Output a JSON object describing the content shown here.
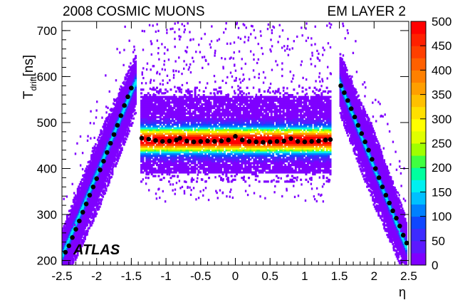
{
  "chart_data": {
    "type": "heatmap",
    "title_left": "2008 COSMIC MUONS",
    "title_right": "EM LAYER 2",
    "xlabel": "η",
    "ylabel_main": "T",
    "ylabel_sub": "drift",
    "ylabel_unit": "[ns]",
    "watermark": "ATLAS",
    "xlim": [
      -2.5,
      2.5
    ],
    "ylim": [
      190,
      720
    ],
    "x_ticks": [
      "-2.5",
      "-2",
      "-1.5",
      "-1",
      "-0.5",
      "0",
      "0.5",
      "1",
      "1.5",
      "2",
      "2.5"
    ],
    "x_tick_values": [
      -2.5,
      -2,
      -1.5,
      -1,
      -0.5,
      0,
      0.5,
      1,
      1.5,
      2,
      2.5
    ],
    "y_ticks": [
      "200",
      "300",
      "400",
      "500",
      "600",
      "700"
    ],
    "y_tick_values": [
      200,
      300,
      400,
      500,
      600,
      700
    ],
    "z_ticks": [
      "0",
      "50",
      "100",
      "150",
      "200",
      "250",
      "300",
      "350",
      "400",
      "450",
      "500"
    ],
    "zlim": [
      0,
      500
    ],
    "palette": [
      "#7f00ff",
      "#5c19ff",
      "#3d2bff",
      "#0f47ff",
      "#0080ff",
      "#00c0ff",
      "#00f0f0",
      "#00ff9f",
      "#40ff40",
      "#a0ff00",
      "#e0ff00",
      "#ffff00",
      "#ffe000",
      "#ffc000",
      "#ff9f00",
      "#ff8000",
      "#ff6000",
      "#ff3f00",
      "#ff2000",
      "#ff0000"
    ],
    "marker_color": "#000000",
    "central_region": {
      "eta_min": -1.37,
      "eta_max": 1.37,
      "band_center_ns": 460,
      "band_low_ns": 390,
      "band_high_ns": 555,
      "peak_z": 500
    },
    "endcap_regions": [
      {
        "eta_start": -2.5,
        "eta_end": -1.45,
        "t_start_ns": 210,
        "t_end_ns": 585
      },
      {
        "eta_start": 1.5,
        "eta_end": 2.45,
        "t_start_ns": 585,
        "t_end_ns": 230
      }
    ],
    "profile_points": [
      {
        "x": -2.45,
        "y": 218
      },
      {
        "x": -2.4,
        "y": 232
      },
      {
        "x": -2.35,
        "y": 250
      },
      {
        "x": -2.3,
        "y": 268
      },
      {
        "x": -2.25,
        "y": 286
      },
      {
        "x": -2.2,
        "y": 305
      },
      {
        "x": -2.15,
        "y": 323
      },
      {
        "x": -2.1,
        "y": 342
      },
      {
        "x": -2.05,
        "y": 360
      },
      {
        "x": -2.0,
        "y": 378
      },
      {
        "x": -1.95,
        "y": 397
      },
      {
        "x": -1.9,
        "y": 416
      },
      {
        "x": -1.85,
        "y": 435
      },
      {
        "x": -1.8,
        "y": 455
      },
      {
        "x": -1.75,
        "y": 474
      },
      {
        "x": -1.7,
        "y": 494
      },
      {
        "x": -1.65,
        "y": 515
      },
      {
        "x": -1.6,
        "y": 537
      },
      {
        "x": -1.55,
        "y": 556
      },
      {
        "x": -1.5,
        "y": 575
      },
      {
        "x": -1.35,
        "y": 466
      },
      {
        "x": -1.25,
        "y": 464
      },
      {
        "x": -1.15,
        "y": 461
      },
      {
        "x": -1.05,
        "y": 459
      },
      {
        "x": -0.95,
        "y": 460
      },
      {
        "x": -0.85,
        "y": 462
      },
      {
        "x": -0.8,
        "y": 466
      },
      {
        "x": -0.7,
        "y": 460
      },
      {
        "x": -0.6,
        "y": 458
      },
      {
        "x": -0.5,
        "y": 459
      },
      {
        "x": -0.4,
        "y": 460
      },
      {
        "x": -0.3,
        "y": 459
      },
      {
        "x": -0.2,
        "y": 460
      },
      {
        "x": -0.1,
        "y": 462
      },
      {
        "x": 0.0,
        "y": 470
      },
      {
        "x": 0.1,
        "y": 462
      },
      {
        "x": 0.2,
        "y": 459
      },
      {
        "x": 0.3,
        "y": 458
      },
      {
        "x": 0.4,
        "y": 457
      },
      {
        "x": 0.5,
        "y": 458
      },
      {
        "x": 0.6,
        "y": 459
      },
      {
        "x": 0.7,
        "y": 460
      },
      {
        "x": 0.8,
        "y": 465
      },
      {
        "x": 0.9,
        "y": 459
      },
      {
        "x": 1.0,
        "y": 458
      },
      {
        "x": 1.1,
        "y": 459
      },
      {
        "x": 1.2,
        "y": 460
      },
      {
        "x": 1.3,
        "y": 462
      },
      {
        "x": 1.37,
        "y": 463
      },
      {
        "x": 1.52,
        "y": 580
      },
      {
        "x": 1.57,
        "y": 565
      },
      {
        "x": 1.62,
        "y": 548
      },
      {
        "x": 1.67,
        "y": 530
      },
      {
        "x": 1.72,
        "y": 512
      },
      {
        "x": 1.77,
        "y": 494
      },
      {
        "x": 1.82,
        "y": 476
      },
      {
        "x": 1.87,
        "y": 458
      },
      {
        "x": 1.92,
        "y": 440
      },
      {
        "x": 1.97,
        "y": 420
      },
      {
        "x": 2.02,
        "y": 400
      },
      {
        "x": 2.07,
        "y": 380
      },
      {
        "x": 2.12,
        "y": 360
      },
      {
        "x": 2.17,
        "y": 342
      },
      {
        "x": 2.22,
        "y": 325
      },
      {
        "x": 2.27,
        "y": 308
      },
      {
        "x": 2.32,
        "y": 292
      },
      {
        "x": 2.37,
        "y": 275
      },
      {
        "x": 2.42,
        "y": 255
      },
      {
        "x": 2.47,
        "y": 238
      }
    ]
  }
}
